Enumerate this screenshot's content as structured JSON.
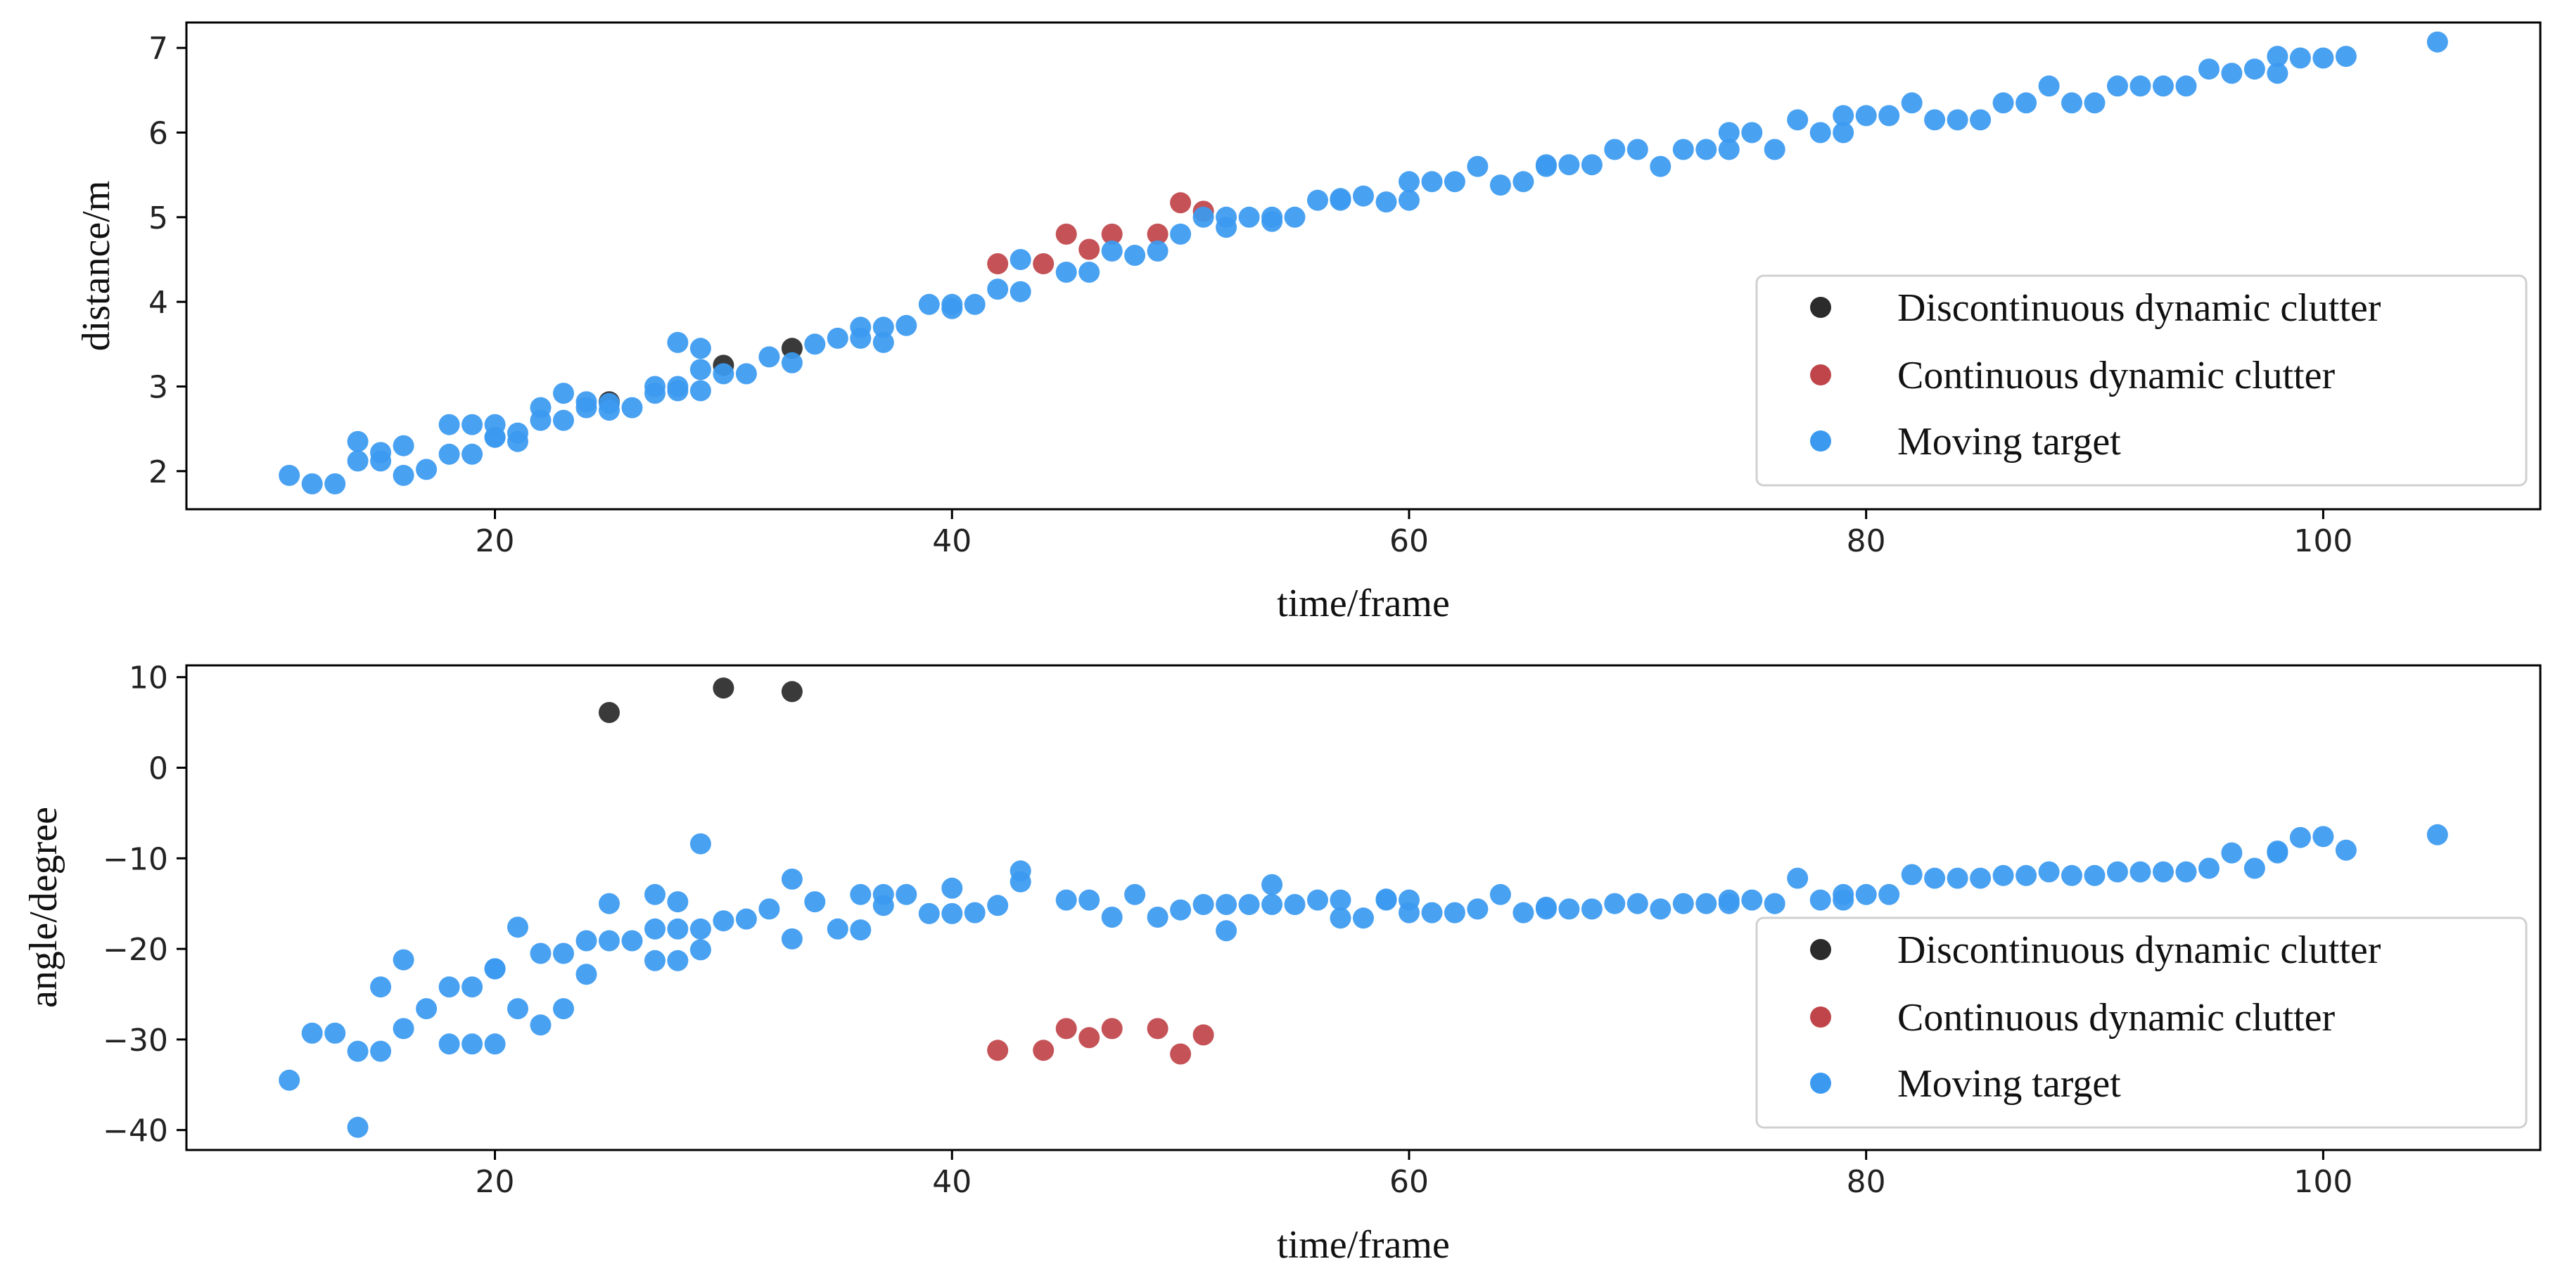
{
  "colors": {
    "discontinuous": "#2b2b2b",
    "continuous": "#c0454a",
    "moving": "#3b9af0",
    "axis": "#000000",
    "legend_border": "#d0d0d0"
  },
  "chart_data": [
    {
      "type": "scatter",
      "xlabel": "time/frame",
      "ylabel": "distance/m",
      "xlim": [
        6.5,
        109.5
      ],
      "ylim": [
        1.55,
        7.3
      ],
      "xticks": [
        20,
        40,
        60,
        80,
        100
      ],
      "yticks": [
        2,
        3,
        4,
        5,
        6,
        7
      ],
      "grid": false,
      "legend_position": "lower-right",
      "series": [
        {
          "name": "Discontinuous dynamic clutter",
          "color_key": "discontinuous",
          "points": [
            [
              25,
              2.82
            ],
            [
              30,
              3.25
            ],
            [
              33,
              3.45
            ]
          ]
        },
        {
          "name": "Continuous dynamic clutter",
          "color_key": "continuous",
          "points": [
            [
              42,
              4.45
            ],
            [
              44,
              4.45
            ],
            [
              45,
              4.8
            ],
            [
              46,
              4.62
            ],
            [
              47,
              4.8
            ],
            [
              49,
              4.8
            ],
            [
              50,
              5.17
            ],
            [
              51,
              5.07
            ]
          ]
        },
        {
          "name": "Moving target",
          "color_key": "moving",
          "points": [
            [
              11,
              1.95
            ],
            [
              12,
              1.85
            ],
            [
              13,
              1.85
            ],
            [
              14,
              2.35
            ],
            [
              14,
              2.12
            ],
            [
              15,
              2.12
            ],
            [
              15,
              2.22
            ],
            [
              16,
              1.95
            ],
            [
              16,
              2.3
            ],
            [
              17,
              2.02
            ],
            [
              18,
              2.2
            ],
            [
              18,
              2.55
            ],
            [
              19,
              2.55
            ],
            [
              19,
              2.2
            ],
            [
              20,
              2.4
            ],
            [
              20,
              2.55
            ],
            [
              20,
              2.4
            ],
            [
              21,
              2.45
            ],
            [
              21,
              2.35
            ],
            [
              22,
              2.6
            ],
            [
              22,
              2.75
            ],
            [
              23,
              2.92
            ],
            [
              23,
              2.6
            ],
            [
              24,
              2.82
            ],
            [
              24,
              2.75
            ],
            [
              25,
              2.72
            ],
            [
              25,
              2.8
            ],
            [
              26,
              2.75
            ],
            [
              27,
              2.92
            ],
            [
              27,
              3.0
            ],
            [
              28,
              3.52
            ],
            [
              28,
              2.95
            ],
            [
              28,
              3.0
            ],
            [
              29,
              3.45
            ],
            [
              29,
              3.2
            ],
            [
              29,
              2.95
            ],
            [
              30,
              3.15
            ],
            [
              31,
              3.15
            ],
            [
              32,
              3.35
            ],
            [
              33,
              3.28
            ],
            [
              34,
              3.5
            ],
            [
              35,
              3.57
            ],
            [
              36,
              3.57
            ],
            [
              36,
              3.7
            ],
            [
              37,
              3.7
            ],
            [
              37,
              3.52
            ],
            [
              38,
              3.72
            ],
            [
              39,
              3.97
            ],
            [
              40,
              3.92
            ],
            [
              40,
              3.97
            ],
            [
              41,
              3.97
            ],
            [
              42,
              4.15
            ],
            [
              43,
              4.5
            ],
            [
              43,
              4.12
            ],
            [
              45,
              4.35
            ],
            [
              46,
              4.35
            ],
            [
              47,
              4.6
            ],
            [
              48,
              4.55
            ],
            [
              49,
              4.6
            ],
            [
              50,
              4.8
            ],
            [
              51,
              5.0
            ],
            [
              52,
              4.88
            ],
            [
              52,
              5.0
            ],
            [
              53,
              5.0
            ],
            [
              54,
              4.95
            ],
            [
              54,
              5.0
            ],
            [
              55,
              5.0
            ],
            [
              56,
              5.2
            ],
            [
              57,
              5.2
            ],
            [
              57,
              5.22
            ],
            [
              58,
              5.25
            ],
            [
              59,
              5.18
            ],
            [
              60,
              5.2
            ],
            [
              60,
              5.42
            ],
            [
              61,
              5.42
            ],
            [
              62,
              5.42
            ],
            [
              63,
              5.6
            ],
            [
              64,
              5.38
            ],
            [
              65,
              5.42
            ],
            [
              66,
              5.6
            ],
            [
              66,
              5.62
            ],
            [
              67,
              5.62
            ],
            [
              68,
              5.62
            ],
            [
              69,
              5.8
            ],
            [
              70,
              5.8
            ],
            [
              71,
              5.6
            ],
            [
              72,
              5.8
            ],
            [
              73,
              5.8
            ],
            [
              74,
              6.0
            ],
            [
              74,
              5.8
            ],
            [
              75,
              6.0
            ],
            [
              76,
              5.8
            ],
            [
              77,
              6.15
            ],
            [
              78,
              6.0
            ],
            [
              79,
              6.2
            ],
            [
              79,
              6.0
            ],
            [
              80,
              6.2
            ],
            [
              81,
              6.2
            ],
            [
              82,
              6.35
            ],
            [
              83,
              6.15
            ],
            [
              84,
              6.15
            ],
            [
              85,
              6.15
            ],
            [
              86,
              6.35
            ],
            [
              87,
              6.35
            ],
            [
              88,
              6.55
            ],
            [
              89,
              6.35
            ],
            [
              90,
              6.35
            ],
            [
              91,
              6.55
            ],
            [
              92,
              6.55
            ],
            [
              93,
              6.55
            ],
            [
              94,
              6.55
            ],
            [
              95,
              6.75
            ],
            [
              96,
              6.7
            ],
            [
              97,
              6.75
            ],
            [
              98,
              6.9
            ],
            [
              98,
              6.7
            ],
            [
              99,
              6.88
            ],
            [
              100,
              6.88
            ],
            [
              101,
              6.9
            ],
            [
              105,
              7.07
            ]
          ]
        }
      ]
    },
    {
      "type": "scatter",
      "xlabel": "time/frame",
      "ylabel": "angle/degree",
      "xlim": [
        6.5,
        109.5
      ],
      "ylim": [
        -42.2,
        11.3
      ],
      "xticks": [
        20,
        40,
        60,
        80,
        100
      ],
      "yticks": [
        10,
        0,
        -10,
        -20,
        -30,
        -40
      ],
      "grid": false,
      "legend_position": "lower-right",
      "series": [
        {
          "name": "Discontinuous dynamic clutter",
          "color_key": "discontinuous",
          "points": [
            [
              25,
              6.1
            ],
            [
              30,
              8.8
            ],
            [
              33,
              8.4
            ]
          ]
        },
        {
          "name": "Continuous dynamic clutter",
          "color_key": "continuous",
          "points": [
            [
              42,
              -31.2
            ],
            [
              44,
              -31.2
            ],
            [
              45,
              -28.8
            ],
            [
              46,
              -29.8
            ],
            [
              47,
              -28.8
            ],
            [
              49,
              -28.8
            ],
            [
              50,
              -31.6
            ],
            [
              51,
              -29.5
            ]
          ]
        },
        {
          "name": "Moving target",
          "color_key": "moving",
          "points": [
            [
              11,
              -34.5
            ],
            [
              12,
              -29.3
            ],
            [
              13,
              -29.3
            ],
            [
              14,
              -31.3
            ],
            [
              14,
              -39.7
            ],
            [
              15,
              -31.3
            ],
            [
              15,
              -24.2
            ],
            [
              16,
              -28.8
            ],
            [
              16,
              -21.2
            ],
            [
              17,
              -26.6
            ],
            [
              18,
              -24.2
            ],
            [
              18,
              -30.5
            ],
            [
              19,
              -30.5
            ],
            [
              19,
              -24.2
            ],
            [
              20,
              -22.2
            ],
            [
              20,
              -30.5
            ],
            [
              20,
              -22.2
            ],
            [
              21,
              -26.6
            ],
            [
              21,
              -17.6
            ],
            [
              22,
              -28.4
            ],
            [
              22,
              -20.5
            ],
            [
              23,
              -20.5
            ],
            [
              23,
              -26.6
            ],
            [
              24,
              -22.8
            ],
            [
              24,
              -19.1
            ],
            [
              25,
              -19.1
            ],
            [
              25,
              -15.0
            ],
            [
              26,
              -19.1
            ],
            [
              27,
              -17.8
            ],
            [
              27,
              -21.3
            ],
            [
              27,
              -14.0
            ],
            [
              28,
              -21.3
            ],
            [
              28,
              -17.8
            ],
            [
              28,
              -14.8
            ],
            [
              29,
              -20.1
            ],
            [
              29,
              -17.8
            ],
            [
              29,
              -8.4
            ],
            [
              30,
              -16.9
            ],
            [
              31,
              -16.7
            ],
            [
              32,
              -15.6
            ],
            [
              33,
              -18.9
            ],
            [
              33,
              -12.3
            ],
            [
              34,
              -14.8
            ],
            [
              35,
              -17.8
            ],
            [
              36,
              -17.9
            ],
            [
              36,
              -14.0
            ],
            [
              37,
              -14.0
            ],
            [
              37,
              -15.2
            ],
            [
              38,
              -14.0
            ],
            [
              39,
              -16.1
            ],
            [
              40,
              -16.1
            ],
            [
              40,
              -13.3
            ],
            [
              41,
              -16.0
            ],
            [
              42,
              -15.2
            ],
            [
              43,
              -12.6
            ],
            [
              43,
              -11.4
            ],
            [
              45,
              -14.6
            ],
            [
              46,
              -14.6
            ],
            [
              47,
              -16.5
            ],
            [
              48,
              -14.0
            ],
            [
              49,
              -16.5
            ],
            [
              50,
              -15.7
            ],
            [
              51,
              -15.1
            ],
            [
              52,
              -15.1
            ],
            [
              52,
              -18.0
            ],
            [
              53,
              -15.1
            ],
            [
              54,
              -15.1
            ],
            [
              54,
              -12.9
            ],
            [
              55,
              -15.1
            ],
            [
              56,
              -14.6
            ],
            [
              57,
              -14.6
            ],
            [
              57,
              -16.6
            ],
            [
              58,
              -16.6
            ],
            [
              59,
              -14.6
            ],
            [
              59,
              -14.5
            ],
            [
              60,
              -16.0
            ],
            [
              60,
              -14.6
            ],
            [
              61,
              -16.0
            ],
            [
              62,
              -16.0
            ],
            [
              63,
              -15.6
            ],
            [
              64,
              -14.0
            ],
            [
              65,
              -16.0
            ],
            [
              66,
              -15.6
            ],
            [
              66,
              -15.4
            ],
            [
              67,
              -15.6
            ],
            [
              68,
              -15.6
            ],
            [
              69,
              -15.0
            ],
            [
              70,
              -15.0
            ],
            [
              71,
              -15.6
            ],
            [
              72,
              -15.0
            ],
            [
              73,
              -15.0
            ],
            [
              74,
              -14.6
            ],
            [
              74,
              -15.0
            ],
            [
              75,
              -14.6
            ],
            [
              76,
              -15.0
            ],
            [
              77,
              -12.2
            ],
            [
              78,
              -14.6
            ],
            [
              79,
              -14.0
            ],
            [
              79,
              -14.6
            ],
            [
              80,
              -14.0
            ],
            [
              81,
              -14.0
            ],
            [
              82,
              -11.8
            ],
            [
              83,
              -12.2
            ],
            [
              84,
              -12.2
            ],
            [
              85,
              -12.2
            ],
            [
              86,
              -11.9
            ],
            [
              87,
              -11.9
            ],
            [
              88,
              -11.5
            ],
            [
              89,
              -11.9
            ],
            [
              90,
              -11.9
            ],
            [
              91,
              -11.5
            ],
            [
              92,
              -11.5
            ],
            [
              93,
              -11.5
            ],
            [
              94,
              -11.5
            ],
            [
              95,
              -11.1
            ],
            [
              96,
              -9.4
            ],
            [
              97,
              -11.1
            ],
            [
              98,
              -9.4
            ],
            [
              98,
              -9.2
            ],
            [
              99,
              -7.7
            ],
            [
              100,
              -7.6
            ],
            [
              101,
              -9.1
            ],
            [
              105,
              -7.4
            ]
          ]
        }
      ]
    }
  ]
}
